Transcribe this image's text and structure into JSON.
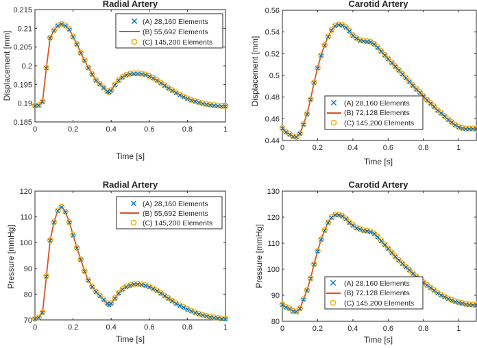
{
  "chart_data": [
    {
      "type": "line",
      "title": "Radial Artery",
      "xlabel": "Time [s]",
      "ylabel": "Displacement [mm]",
      "xlim": [
        0,
        1
      ],
      "ylim": [
        0.185,
        0.215
      ],
      "xticks": [
        0,
        0.2,
        0.4,
        0.6,
        0.8,
        1
      ],
      "xtick_labels": [
        "0",
        "0.2",
        "0.4",
        "0.6",
        "0.8",
        "1"
      ],
      "yticks": [
        0.185,
        0.19,
        0.195,
        0.2,
        0.205,
        0.21,
        0.215
      ],
      "ytick_labels": [
        "0.185",
        "0.19",
        "0.195",
        "0.2",
        "0.205",
        "0.21",
        "0.215"
      ],
      "legend_position": "top-right",
      "grid": false,
      "series": [
        {
          "name": "(A) 28,160 Elements",
          "marker": "x",
          "color": "#0072BD"
        },
        {
          "name": "(B) 55,692 Elements",
          "marker": "line",
          "color": "#D95319"
        },
        {
          "name": "(C) 145,200 Elements",
          "marker": "o",
          "color": "#EDB120"
        }
      ],
      "curve": {
        "x": [
          0,
          0.02,
          0.04,
          0.06,
          0.08,
          0.1,
          0.12,
          0.14,
          0.16,
          0.18,
          0.2,
          0.22,
          0.24,
          0.26,
          0.28,
          0.3,
          0.32,
          0.34,
          0.36,
          0.38,
          0.39,
          0.4,
          0.42,
          0.44,
          0.46,
          0.48,
          0.5,
          0.52,
          0.54,
          0.56,
          0.58,
          0.6,
          0.62,
          0.64,
          0.66,
          0.68,
          0.7,
          0.72,
          0.74,
          0.76,
          0.78,
          0.8,
          0.82,
          0.84,
          0.86,
          0.88,
          0.9,
          0.92,
          0.94,
          0.96,
          0.98,
          1.0
        ],
        "y": [
          0.1894,
          0.1895,
          0.1905,
          0.1995,
          0.2075,
          0.2095,
          0.2108,
          0.2112,
          0.2108,
          0.2098,
          0.2078,
          0.2058,
          0.2035,
          0.2015,
          0.1995,
          0.1978,
          0.1962,
          0.1952,
          0.1942,
          0.1932,
          0.193,
          0.1935,
          0.195,
          0.1962,
          0.197,
          0.1976,
          0.1979,
          0.198,
          0.198,
          0.1979,
          0.1977,
          0.1973,
          0.1968,
          0.1962,
          0.1955,
          0.1948,
          0.1941,
          0.1935,
          0.1929,
          0.1923,
          0.1918,
          0.1913,
          0.1909,
          0.1906,
          0.1903,
          0.19,
          0.1898,
          0.1896,
          0.1895,
          0.1894,
          0.1893,
          0.1893
        ]
      }
    },
    {
      "type": "line",
      "title": "Carotid Artery",
      "xlabel": "Time [s]",
      "ylabel": "Displacement [mm]",
      "xlim": [
        0,
        1.1
      ],
      "ylim": [
        0.44,
        0.56
      ],
      "xticks": [
        0,
        0.2,
        0.4,
        0.6,
        0.8,
        1
      ],
      "xtick_labels": [
        "0",
        "0.2",
        "0.4",
        "0.6",
        "0.8",
        "1"
      ],
      "yticks": [
        0.44,
        0.46,
        0.48,
        0.5,
        0.52,
        0.54,
        0.56
      ],
      "ytick_labels": [
        "0.44",
        "0.46",
        "0.48",
        "0.5",
        "0.52",
        "0.54",
        "0.56"
      ],
      "legend_position": "bottom-right",
      "grid": false,
      "series": [
        {
          "name": "(A) 28,160 Elements",
          "marker": "x",
          "color": "#0072BD"
        },
        {
          "name": "(B) 72,128 Elements",
          "marker": "line",
          "color": "#D95319"
        },
        {
          "name": "(C) 145,200 Elements",
          "marker": "o",
          "color": "#EDB120"
        }
      ],
      "curve": {
        "x": [
          0,
          0.02,
          0.04,
          0.06,
          0.08,
          0.1,
          0.12,
          0.14,
          0.16,
          0.18,
          0.2,
          0.22,
          0.24,
          0.26,
          0.28,
          0.3,
          0.32,
          0.34,
          0.36,
          0.38,
          0.4,
          0.42,
          0.44,
          0.46,
          0.48,
          0.5,
          0.52,
          0.54,
          0.56,
          0.58,
          0.6,
          0.62,
          0.64,
          0.66,
          0.68,
          0.7,
          0.72,
          0.74,
          0.76,
          0.78,
          0.8,
          0.82,
          0.84,
          0.86,
          0.88,
          0.9,
          0.92,
          0.94,
          0.96,
          0.98,
          1.0,
          1.02,
          1.04,
          1.06,
          1.08,
          1.1
        ],
        "y": [
          0.4515,
          0.448,
          0.446,
          0.444,
          0.4435,
          0.4465,
          0.455,
          0.4645,
          0.478,
          0.4935,
          0.507,
          0.5185,
          0.528,
          0.536,
          0.542,
          0.546,
          0.547,
          0.5465,
          0.5445,
          0.541,
          0.537,
          0.5345,
          0.5325,
          0.532,
          0.5315,
          0.531,
          0.529,
          0.526,
          0.5225,
          0.519,
          0.5155,
          0.512,
          0.5085,
          0.505,
          0.5015,
          0.498,
          0.4945,
          0.491,
          0.4875,
          0.4845,
          0.481,
          0.4775,
          0.4745,
          0.4715,
          0.468,
          0.4655,
          0.4625,
          0.4595,
          0.457,
          0.4545,
          0.4525,
          0.4515,
          0.451,
          0.451,
          0.451,
          0.451
        ]
      }
    },
    {
      "type": "line",
      "title": "Radial Artery",
      "xlabel": "Time [s]",
      "ylabel": "Pressure [mmHg]",
      "xlim": [
        0,
        1
      ],
      "ylim": [
        70,
        120
      ],
      "xticks": [
        0,
        0.2,
        0.4,
        0.6,
        0.8,
        1
      ],
      "xtick_labels": [
        "0",
        "0.2",
        "0.4",
        "0.6",
        "0.8",
        "1"
      ],
      "yticks": [
        70,
        80,
        90,
        100,
        110,
        120
      ],
      "ytick_labels": [
        "70",
        "80",
        "90",
        "100",
        "110",
        "120"
      ],
      "legend_position": "top-right",
      "grid": false,
      "series": [
        {
          "name": "(A) 28,160 Elements",
          "marker": "x",
          "color": "#0072BD"
        },
        {
          "name": "(B) 55,692 Elements",
          "marker": "line",
          "color": "#D95319"
        },
        {
          "name": "(C) 145,200 Elements",
          "marker": "o",
          "color": "#EDB120"
        }
      ],
      "curve": {
        "x": [
          0,
          0.02,
          0.04,
          0.06,
          0.08,
          0.1,
          0.12,
          0.14,
          0.16,
          0.18,
          0.2,
          0.22,
          0.24,
          0.26,
          0.28,
          0.3,
          0.32,
          0.34,
          0.36,
          0.38,
          0.39,
          0.4,
          0.42,
          0.44,
          0.46,
          0.48,
          0.5,
          0.52,
          0.54,
          0.56,
          0.58,
          0.6,
          0.62,
          0.64,
          0.66,
          0.68,
          0.7,
          0.72,
          0.74,
          0.76,
          0.78,
          0.8,
          0.82,
          0.84,
          0.86,
          0.88,
          0.9,
          0.92,
          0.94,
          0.96,
          0.98,
          1.0
        ],
        "y": [
          70.5,
          71,
          73,
          87,
          101,
          108,
          112.5,
          114,
          112,
          108,
          103,
          98,
          93.5,
          89,
          85.5,
          83,
          81,
          79.5,
          78,
          76.5,
          76,
          76.5,
          78.5,
          80.5,
          82,
          83,
          83.5,
          84,
          84,
          83.8,
          83.5,
          83,
          82.3,
          81.5,
          80.5,
          79.5,
          78.5,
          77.5,
          76.5,
          75.7,
          75,
          74.2,
          73.6,
          73,
          72.4,
          72,
          71.6,
          71.3,
          71,
          70.8,
          70.6,
          70.5
        ]
      }
    },
    {
      "type": "line",
      "title": "Carotid Artery",
      "xlabel": "Time [s]",
      "ylabel": "Pressure [mmHg]",
      "xlim": [
        0,
        1.1
      ],
      "ylim": [
        80,
        130
      ],
      "xticks": [
        0,
        0.2,
        0.4,
        0.6,
        0.8,
        1
      ],
      "xtick_labels": [
        "0",
        "0.2",
        "0.4",
        "0.6",
        "0.8",
        "1"
      ],
      "yticks": [
        80,
        90,
        100,
        110,
        120,
        130
      ],
      "ytick_labels": [
        "80",
        "90",
        "100",
        "110",
        "120",
        "130"
      ],
      "legend_position": "bottom-right",
      "grid": false,
      "series": [
        {
          "name": "(A) 28,160 Elements",
          "marker": "x",
          "color": "#0072BD"
        },
        {
          "name": "(B) 72,128 Elements",
          "marker": "line",
          "color": "#D95319"
        },
        {
          "name": "(C) 145,200 Elements",
          "marker": "o",
          "color": "#EDB120"
        }
      ],
      "curve": {
        "x": [
          0,
          0.02,
          0.04,
          0.06,
          0.08,
          0.1,
          0.12,
          0.14,
          0.16,
          0.18,
          0.2,
          0.22,
          0.24,
          0.26,
          0.28,
          0.3,
          0.32,
          0.34,
          0.36,
          0.38,
          0.4,
          0.42,
          0.44,
          0.46,
          0.48,
          0.5,
          0.52,
          0.54,
          0.56,
          0.58,
          0.6,
          0.62,
          0.64,
          0.66,
          0.68,
          0.7,
          0.72,
          0.74,
          0.76,
          0.78,
          0.8,
          0.82,
          0.84,
          0.86,
          0.88,
          0.9,
          0.92,
          0.94,
          0.96,
          0.98,
          1.0,
          1.02,
          1.04,
          1.06,
          1.08,
          1.1
        ],
        "y": [
          86.5,
          85.5,
          85,
          84,
          83.8,
          85,
          88.5,
          92,
          96.5,
          102,
          107,
          111.5,
          115,
          118,
          120,
          121,
          121,
          120.5,
          119.5,
          118,
          117,
          116,
          115.5,
          115,
          114.8,
          114.5,
          113.8,
          112.5,
          111,
          109.5,
          108,
          106.5,
          105,
          103.6,
          102.3,
          101,
          99.8,
          98.5,
          97.2,
          96,
          95,
          94,
          93,
          92,
          91,
          90.2,
          89.5,
          88.8,
          88.2,
          87.7,
          87.3,
          87,
          86.7,
          86.5,
          86.4,
          86.3
        ]
      }
    }
  ]
}
